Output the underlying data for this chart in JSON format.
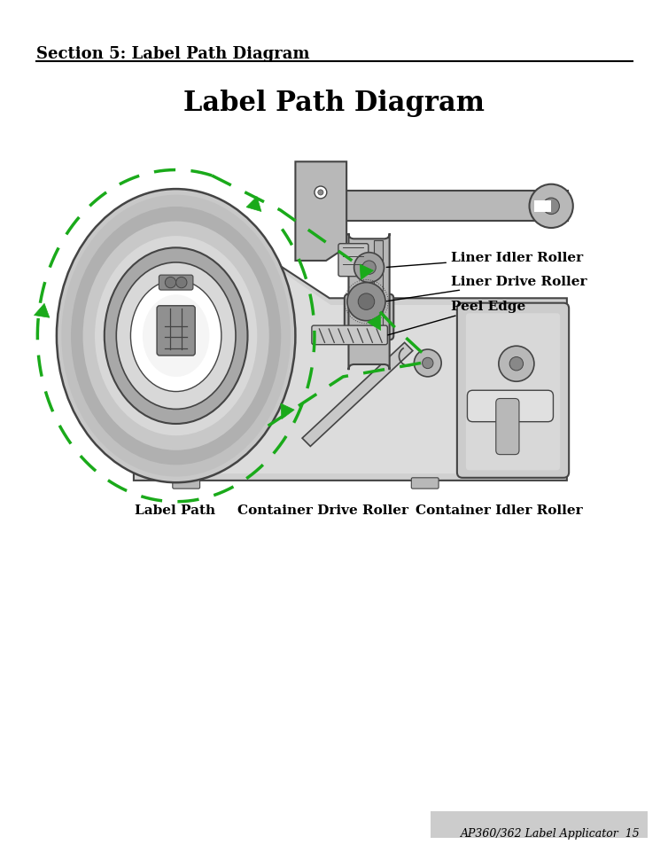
{
  "title": "Label Path Diagram",
  "section_header": "Section 5: Label Path Diagram",
  "footer_text": "AP360/362 Label Applicator  15",
  "bg_color": "#ffffff",
  "labels": {
    "liner_idler": "Liner Idler Roller",
    "liner_drive": "Liner Drive Roller",
    "peel_edge": "Peel Edge",
    "label_path": "Label Path",
    "container_drive": "Container Drive Roller",
    "container_idler": "Container Idler Roller"
  },
  "green": "#1aaa1a",
  "gray_light": "#d4d4d4",
  "gray_mid": "#b8b8b8",
  "gray_dark": "#888888",
  "gray_border": "#444444",
  "gray_very_light": "#e8e8e8"
}
